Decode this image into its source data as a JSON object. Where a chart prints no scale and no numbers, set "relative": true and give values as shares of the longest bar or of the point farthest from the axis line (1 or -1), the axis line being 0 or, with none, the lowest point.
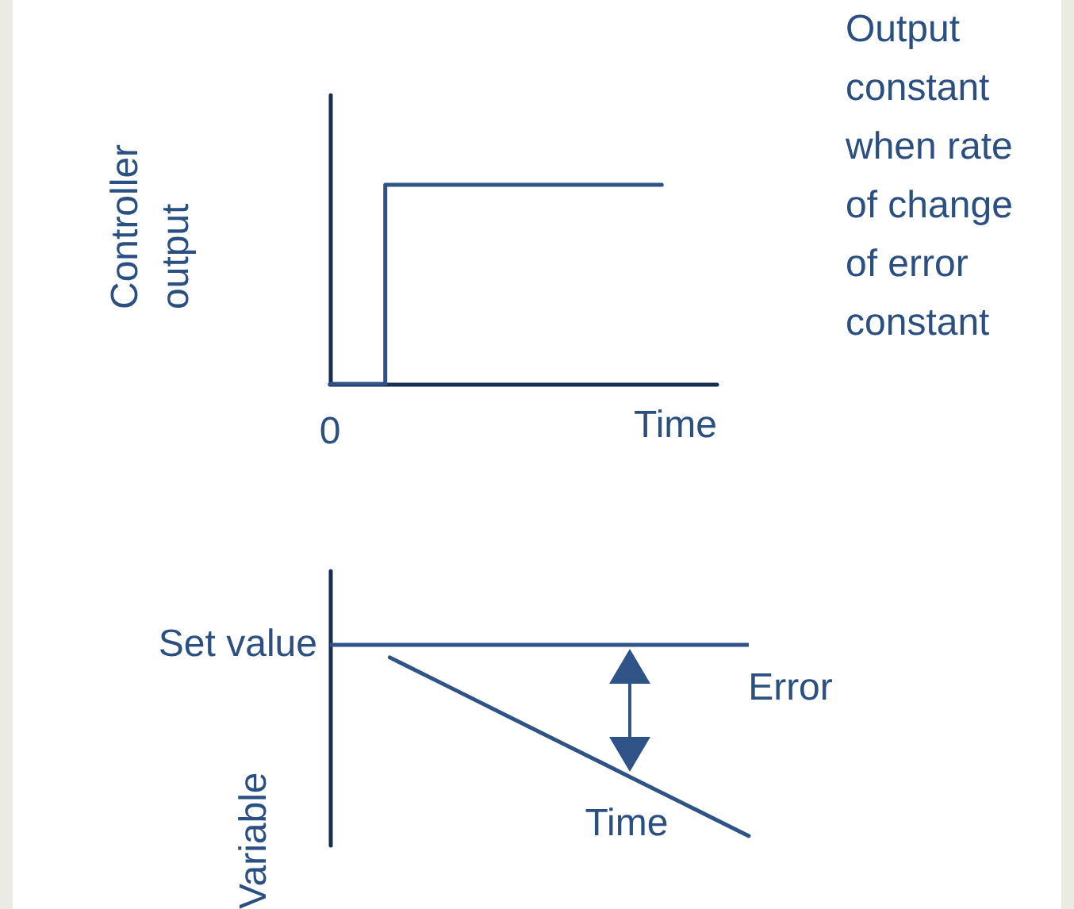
{
  "chart_data": [
    {
      "type": "step",
      "relative": true,
      "categories": [
        null,
        null,
        null,
        null,
        null,
        null,
        null,
        null
      ],
      "values": [
        0,
        0,
        1,
        1,
        1,
        1,
        1,
        null
      ],
      "color": "#2f5386",
      "xlabel": "Time",
      "ylabel": "Controller output",
      "annotations": [
        {
          "text": "0",
          "y": 0
        },
        "Output constant when rate of change of error constant"
      ],
      "marker": "none",
      "line_style": "solid",
      "tick_labels": false
    },
    {
      "type": "line",
      "relative": true,
      "categories": [
        null,
        null,
        null,
        null,
        null,
        null,
        null,
        null
      ],
      "values": [
        null,
        -0.07,
        -0.225,
        -0.38,
        -0.535,
        -0.69,
        -0.845,
        -1
      ],
      "color": "#2f5386",
      "xlabel": "Time",
      "ylabel": "Variable",
      "ref_lines": [
        {
          "axis": "y",
          "value": 0,
          "label": "Set value"
        }
      ],
      "annotations": [
        "Error"
      ],
      "marker": "none",
      "line_style": "solid",
      "tick_labels": false
    }
  ]
}
